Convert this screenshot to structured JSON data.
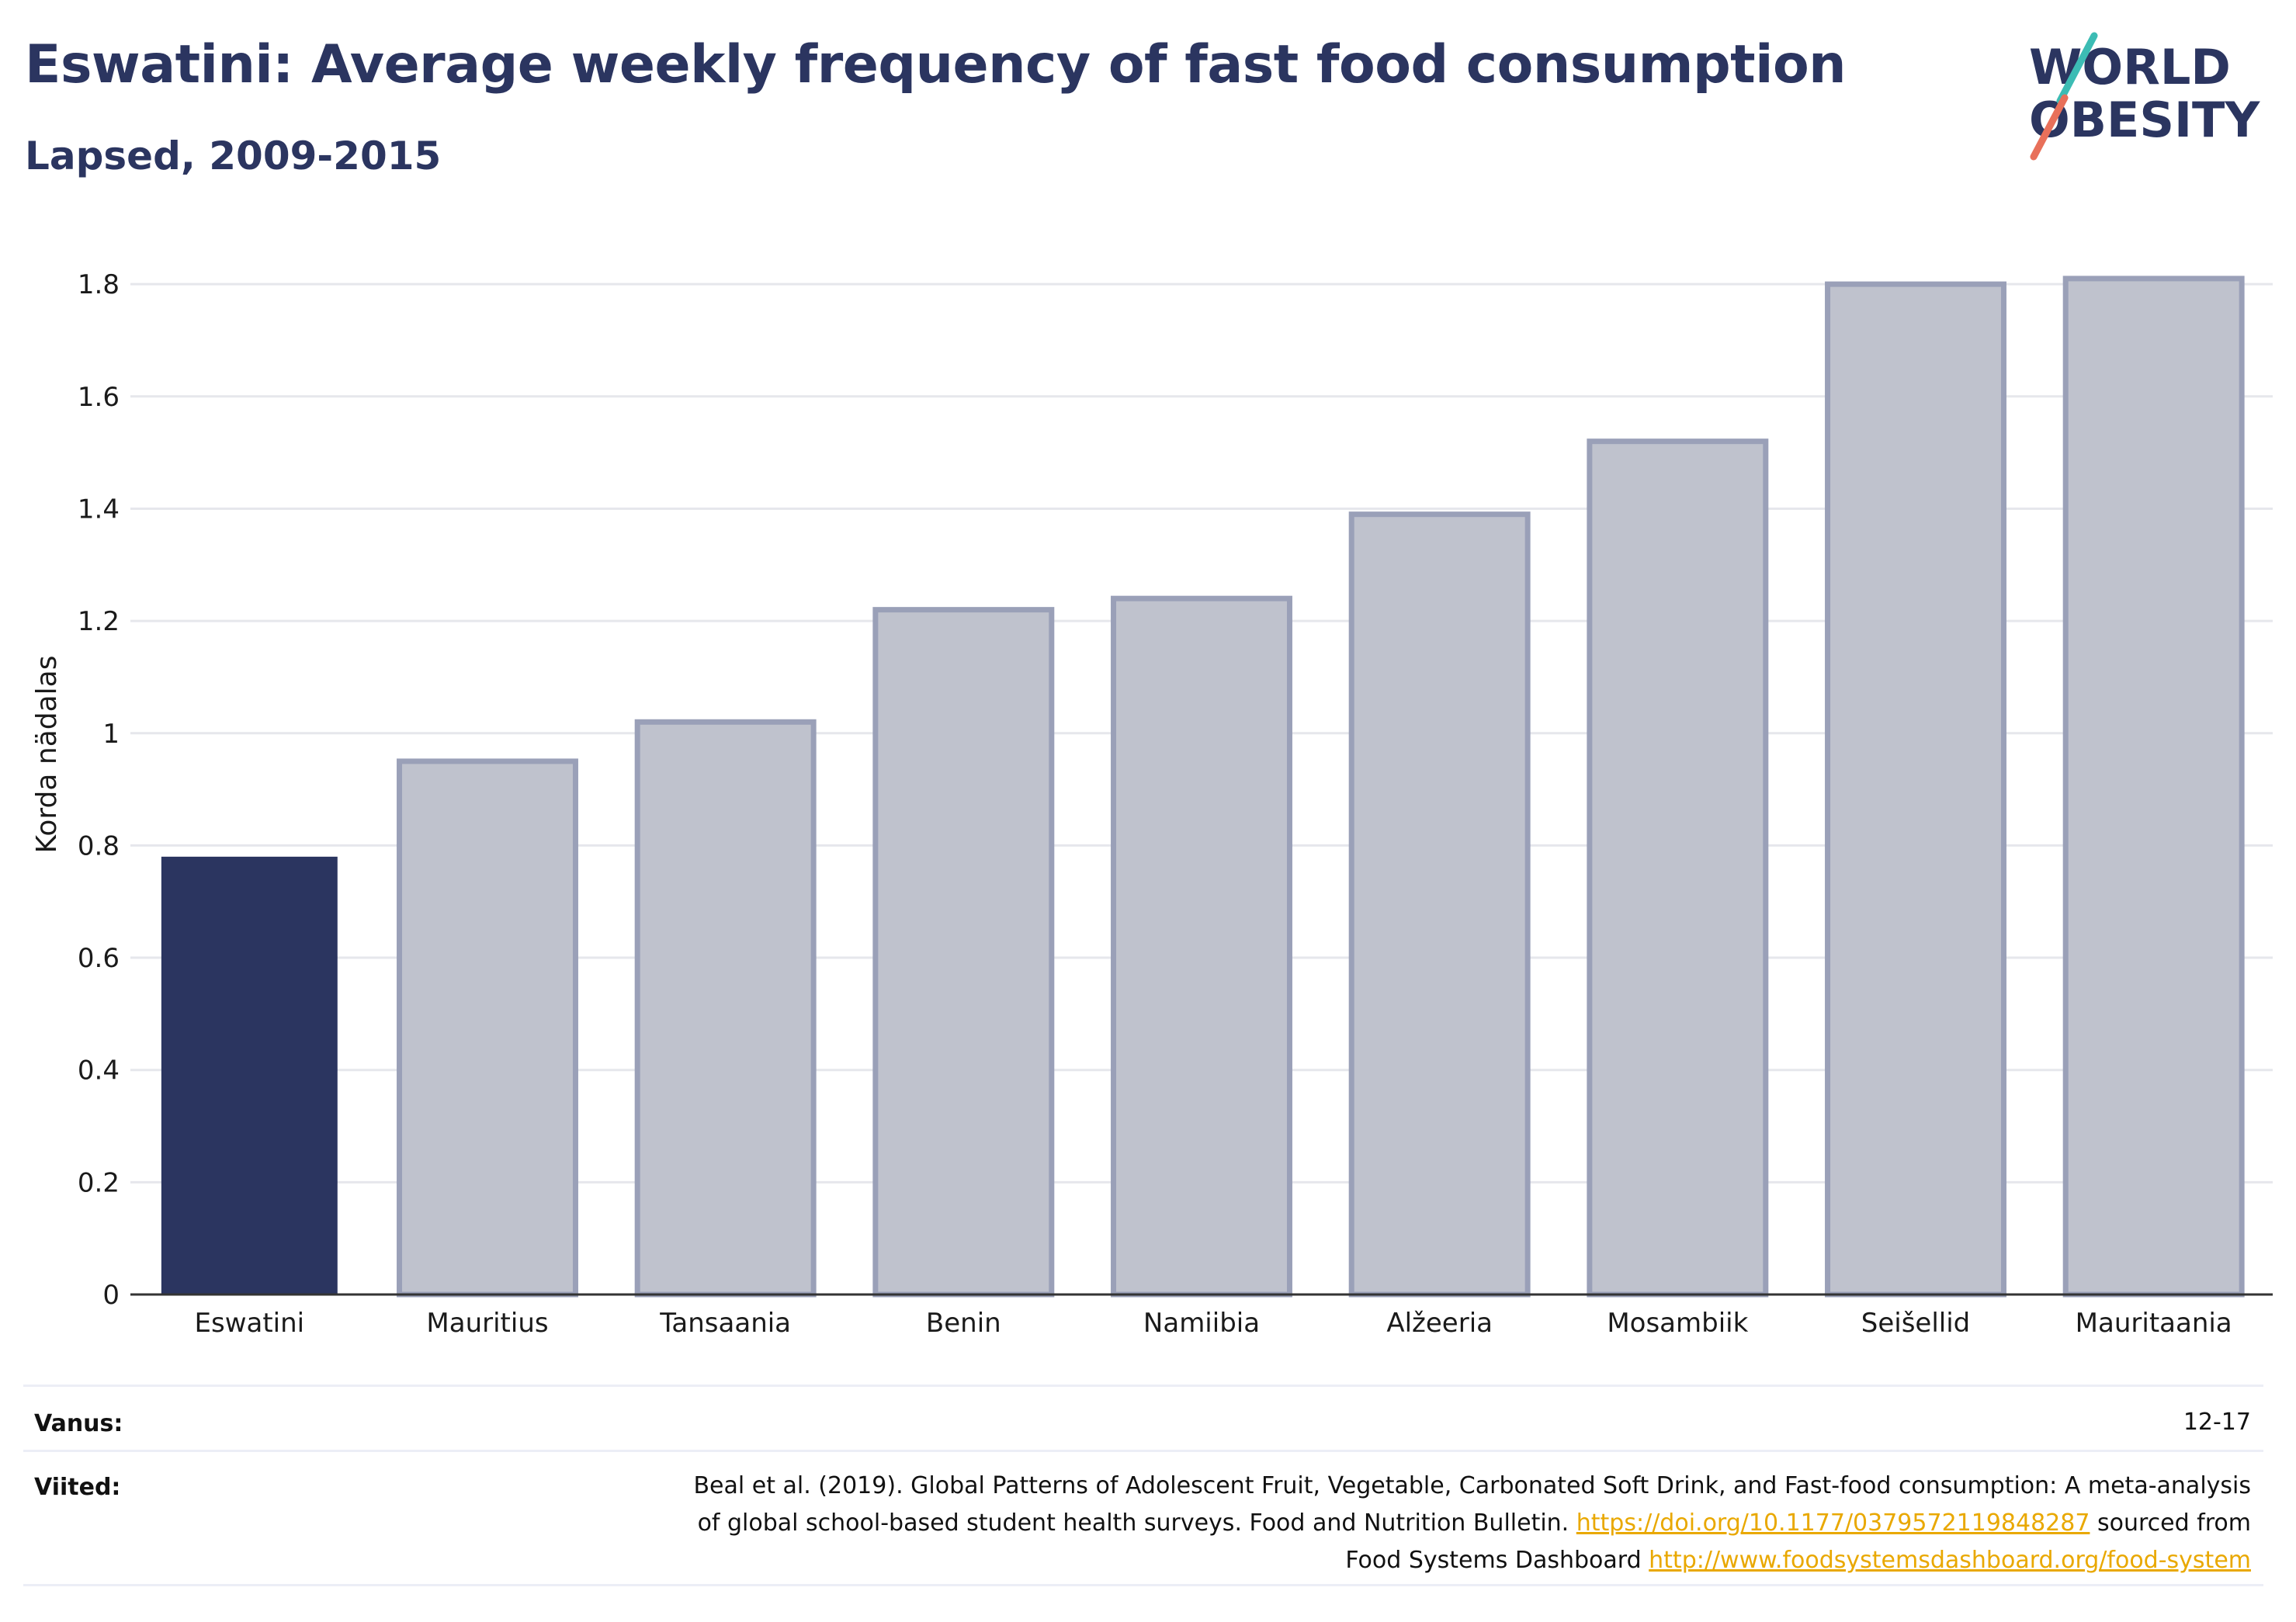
{
  "header": {
    "title": "Eswatini: Average weekly frequency of fast food consumption",
    "subtitle": "Lapsed, 2009-2015"
  },
  "logo": {
    "line1": "WORLD",
    "line2": "OBESITY"
  },
  "colors": {
    "highlight_bar": "#2b3560",
    "other_bar_fill": "#bfc2cd",
    "other_bar_stroke": "#9aa0b8",
    "title": "#2b3560",
    "link": "#e9a800",
    "logo_teal": "#3cbcb4",
    "logo_coral": "#e8705a"
  },
  "chart_data": {
    "type": "bar",
    "title": "Eswatini: Average weekly frequency of fast food consumption",
    "subtitle": "Lapsed, 2009-2015",
    "xlabel": "",
    "ylabel": "Korda nädalas",
    "ylim": [
      0,
      1.85
    ],
    "yticks": [
      "0",
      "0.2",
      "0.4",
      "0.6",
      "0.8",
      "1",
      "1.2",
      "1.4",
      "1.6",
      "1.8"
    ],
    "categories": [
      "Eswatini",
      "Mauritius",
      "Tansaania",
      "Benin",
      "Namiibia",
      "Alžeeria",
      "Mosambiik",
      "Seišellid",
      "Mauritaania"
    ],
    "values": [
      0.78,
      0.95,
      1.02,
      1.22,
      1.24,
      1.39,
      1.52,
      1.8,
      1.81
    ],
    "highlight": "Eswatini",
    "grid": true
  },
  "footer": {
    "age_label": "Vanus:",
    "age_value": "12-17",
    "refs_label": "Viited:",
    "refs_line1": "Beal et al. (2019). Global Patterns of Adolescent Fruit, Vegetable, Carbonated Soft Drink, and Fast-food consumption: A meta-analysis",
    "refs_line2_pre": "of global school-based student health surveys. Food and Nutrition Bulletin. ",
    "refs_link1": "https://doi.org/10.1177/0379572119848287",
    "refs_line2_post": " sourced from",
    "refs_line3_pre": "Food Systems Dashboard ",
    "refs_link2": "http://www.foodsystemsdashboard.org/food-system"
  }
}
